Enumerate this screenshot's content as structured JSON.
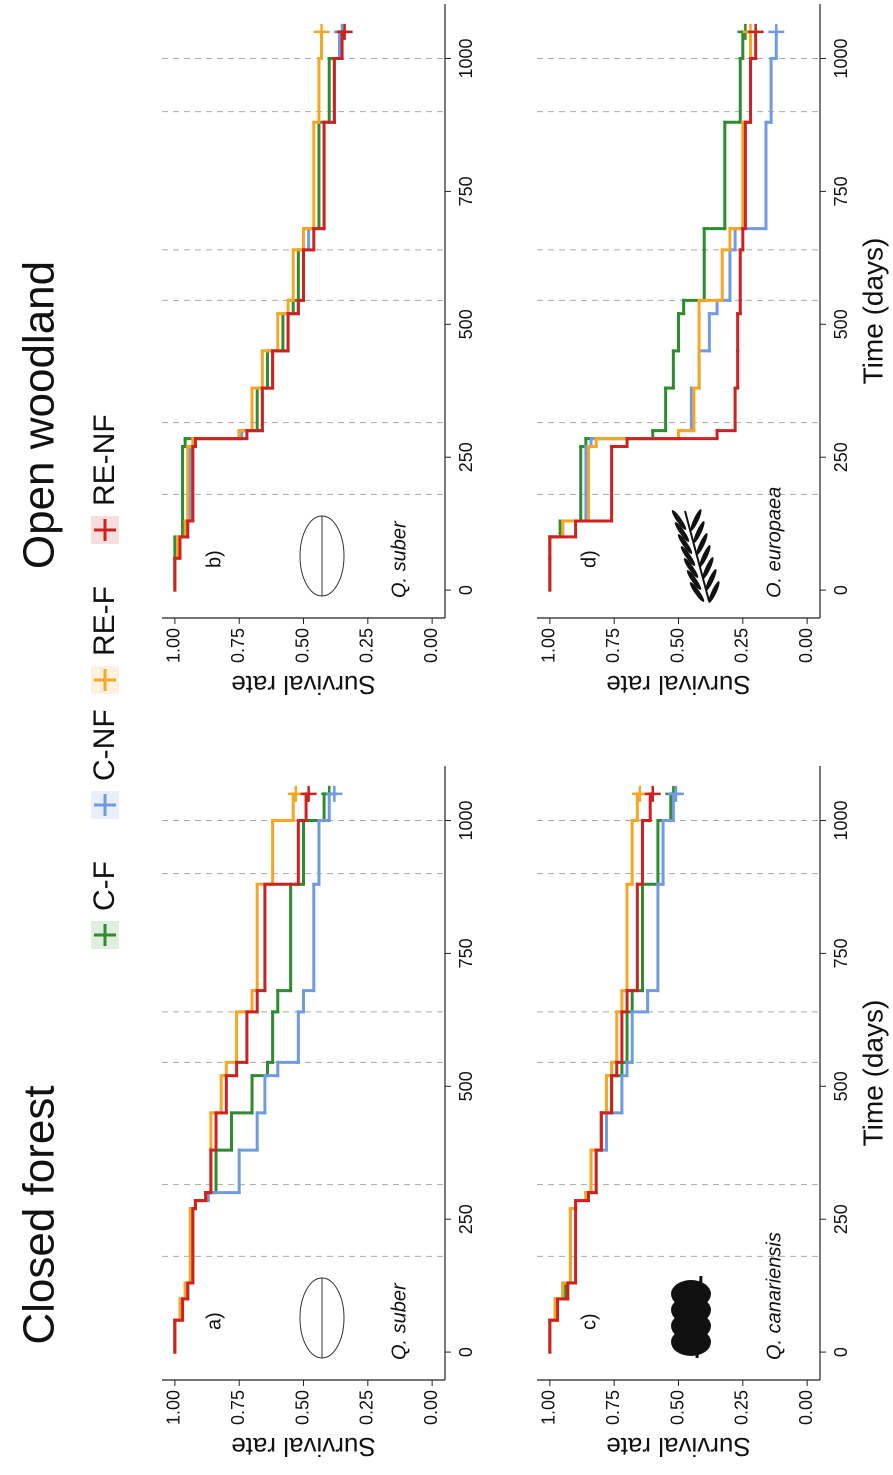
{
  "column_titles": [
    "Closed forest",
    "Open woodland"
  ],
  "chart_data": [
    {
      "type": "step",
      "panel_label": "a)",
      "species": "Q. suber",
      "y_label": "Survival rate",
      "xlim": [
        -52.5,
        1102.5
      ],
      "ylim": [
        -0.05,
        1.05
      ],
      "xticks": [
        0,
        250,
        500,
        750,
        1000
      ],
      "yticks": [
        {
          "value": 0,
          "label": "0.00"
        },
        {
          "value": 0.25,
          "label": "0.25"
        },
        {
          "value": 0.5,
          "label": "0.50"
        },
        {
          "value": 0.75,
          "label": "0.75"
        },
        {
          "value": 1,
          "label": "1.00"
        }
      ],
      "reference_lines": [
        180,
        315,
        545,
        640,
        900,
        1000
      ],
      "x": [
        0,
        60,
        100,
        130,
        270,
        285,
        300,
        380,
        450,
        520,
        545,
        640,
        680,
        880,
        1000,
        1050
      ],
      "series": [
        {
          "name": "C-F",
          "color": "#2e8b2e",
          "values": [
            1,
            0.98,
            0.95,
            0.93,
            0.92,
            0.88,
            0.84,
            0.78,
            0.7,
            0.64,
            0.62,
            0.6,
            0.55,
            0.5,
            0.42,
            0.4
          ]
        },
        {
          "name": "C-NF",
          "color": "#6f9be0",
          "values": [
            1,
            0.98,
            0.95,
            0.93,
            0.92,
            0.87,
            0.75,
            0.68,
            0.65,
            0.6,
            0.52,
            0.5,
            0.46,
            0.44,
            0.4,
            0.38
          ]
        },
        {
          "name": "RE-F",
          "color": "#f5a623",
          "values": [
            1,
            0.98,
            0.96,
            0.94,
            0.92,
            0.88,
            0.86,
            0.86,
            0.82,
            0.8,
            0.76,
            0.7,
            0.68,
            0.62,
            0.54,
            0.53
          ]
        },
        {
          "name": "RE-NF",
          "color": "#cc2222",
          "values": [
            1,
            0.97,
            0.95,
            0.93,
            0.92,
            0.88,
            0.86,
            0.84,
            0.8,
            0.76,
            0.72,
            0.68,
            0.65,
            0.52,
            0.49,
            0.48
          ]
        }
      ]
    },
    {
      "type": "step",
      "panel_label": "b)",
      "species": "Q. suber",
      "y_label": "Survival rate",
      "xlim": [
        -52.5,
        1102.5
      ],
      "ylim": [
        -0.05,
        1.05
      ],
      "xticks": [
        0,
        250,
        500,
        750,
        1000
      ],
      "yticks": [
        {
          "value": 0,
          "label": "0.00"
        },
        {
          "value": 0.25,
          "label": "0.25"
        },
        {
          "value": 0.5,
          "label": "0.50"
        },
        {
          "value": 0.75,
          "label": "0.75"
        },
        {
          "value": 1,
          "label": "1.00"
        }
      ],
      "reference_lines": [
        180,
        315,
        545,
        640,
        900,
        1000
      ],
      "x": [
        0,
        60,
        100,
        130,
        270,
        285,
        300,
        380,
        450,
        520,
        545,
        640,
        680,
        880,
        1000,
        1050
      ],
      "series": [
        {
          "name": "C-F",
          "color": "#2e8b2e",
          "values": [
            1,
            1,
            0.97,
            0.97,
            0.96,
            0.75,
            0.68,
            0.64,
            0.58,
            0.54,
            0.52,
            0.5,
            0.44,
            0.4,
            0.36,
            0.35
          ]
        },
        {
          "name": "C-NF",
          "color": "#6f9be0",
          "values": [
            1,
            0.99,
            0.95,
            0.94,
            0.93,
            0.74,
            0.66,
            0.62,
            0.56,
            0.52,
            0.5,
            0.48,
            0.42,
            0.38,
            0.36,
            0.35
          ]
        },
        {
          "name": "RE-F",
          "color": "#f5a623",
          "values": [
            1,
            0.99,
            0.96,
            0.95,
            0.93,
            0.75,
            0.7,
            0.66,
            0.6,
            0.56,
            0.54,
            0.5,
            0.46,
            0.44,
            0.43,
            0.43
          ]
        },
        {
          "name": "RE-NF",
          "color": "#cc2222",
          "values": [
            1,
            0.98,
            0.95,
            0.93,
            0.92,
            0.72,
            0.66,
            0.62,
            0.56,
            0.52,
            0.5,
            0.46,
            0.42,
            0.38,
            0.35,
            0.34
          ]
        }
      ]
    },
    {
      "type": "step",
      "panel_label": "c)",
      "species": "Q. canariensis",
      "y_label": "Survival rate",
      "x_label": "Time (days)",
      "xlim": [
        -52.5,
        1102.5
      ],
      "ylim": [
        -0.05,
        1.05
      ],
      "xticks": [
        0,
        250,
        500,
        750,
        1000
      ],
      "yticks": [
        {
          "value": 0,
          "label": "0.00"
        },
        {
          "value": 0.25,
          "label": "0.25"
        },
        {
          "value": 0.5,
          "label": "0.50"
        },
        {
          "value": 0.75,
          "label": "0.75"
        },
        {
          "value": 1,
          "label": "1.00"
        }
      ],
      "reference_lines": [
        180,
        315,
        545,
        640,
        900,
        1000
      ],
      "x": [
        0,
        60,
        100,
        130,
        270,
        285,
        300,
        380,
        450,
        520,
        545,
        640,
        680,
        880,
        1000,
        1050
      ],
      "series": [
        {
          "name": "C-F",
          "color": "#2e8b2e",
          "values": [
            1,
            0.98,
            0.94,
            0.92,
            0.9,
            0.86,
            0.84,
            0.8,
            0.76,
            0.72,
            0.7,
            0.68,
            0.64,
            0.58,
            0.53,
            0.52
          ]
        },
        {
          "name": "C-NF",
          "color": "#6f9be0",
          "values": [
            1,
            0.98,
            0.95,
            0.92,
            0.9,
            0.85,
            0.82,
            0.78,
            0.72,
            0.7,
            0.68,
            0.62,
            0.58,
            0.56,
            0.52,
            0.51
          ]
        },
        {
          "name": "RE-F",
          "color": "#f5a623",
          "values": [
            1,
            0.98,
            0.95,
            0.92,
            0.9,
            0.86,
            0.84,
            0.8,
            0.78,
            0.76,
            0.74,
            0.72,
            0.7,
            0.68,
            0.66,
            0.65
          ]
        },
        {
          "name": "RE-NF",
          "color": "#cc2222",
          "values": [
            1,
            0.97,
            0.93,
            0.9,
            0.9,
            0.85,
            0.82,
            0.8,
            0.76,
            0.74,
            0.72,
            0.7,
            0.66,
            0.64,
            0.61,
            0.6
          ]
        }
      ]
    },
    {
      "type": "step",
      "panel_label": "d)",
      "species": "O. europaea",
      "y_label": "Survival rate",
      "x_label": "Time (days)",
      "xlim": [
        -52.5,
        1102.5
      ],
      "ylim": [
        -0.05,
        1.05
      ],
      "xticks": [
        0,
        250,
        500,
        750,
        1000
      ],
      "yticks": [
        {
          "value": 0,
          "label": "0.00"
        },
        {
          "value": 0.25,
          "label": "0.25"
        },
        {
          "value": 0.5,
          "label": "0.50"
        },
        {
          "value": 0.75,
          "label": "0.75"
        },
        {
          "value": 1,
          "label": "1.00"
        }
      ],
      "reference_lines": [
        180,
        315,
        545,
        640,
        900,
        1000
      ],
      "x": [
        0,
        60,
        100,
        130,
        270,
        285,
        300,
        380,
        450,
        520,
        545,
        640,
        680,
        880,
        1000,
        1050
      ],
      "series": [
        {
          "name": "C-F",
          "color": "#2e8b2e",
          "values": [
            1,
            1,
            0.96,
            0.88,
            0.86,
            0.6,
            0.55,
            0.52,
            0.5,
            0.48,
            0.4,
            0.4,
            0.32,
            0.26,
            0.25,
            0.24
          ]
        },
        {
          "name": "C-NF",
          "color": "#6f9be0",
          "values": [
            1,
            1,
            0.95,
            0.86,
            0.84,
            0.5,
            0.45,
            0.42,
            0.38,
            0.35,
            0.3,
            0.28,
            0.16,
            0.14,
            0.12,
            0.12
          ]
        },
        {
          "name": "RE-F",
          "color": "#f5a623",
          "values": [
            1,
            1,
            0.95,
            0.85,
            0.82,
            0.5,
            0.44,
            0.42,
            0.42,
            0.42,
            0.33,
            0.3,
            0.25,
            0.22,
            0.22,
            0.22
          ]
        },
        {
          "name": "RE-NF",
          "color": "#cc2222",
          "values": [
            1,
            1,
            0.9,
            0.76,
            0.7,
            0.35,
            0.28,
            0.27,
            0.27,
            0.26,
            0.26,
            0.25,
            0.24,
            0.22,
            0.2,
            0.2
          ]
        }
      ]
    }
  ]
}
